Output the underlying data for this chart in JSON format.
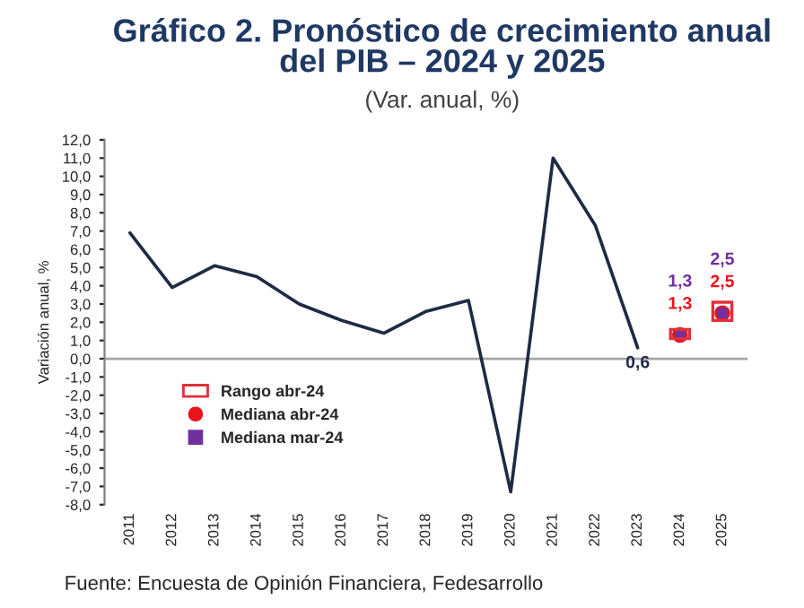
{
  "chart_data": {
    "type": "line",
    "title": "Gráfico 2. Pronóstico de crecimiento anual\ndel PIB – 2024 y 2025",
    "subtitle": "(Var. anual, %)",
    "ylabel": "Variación anual, %",
    "categories": [
      "2011",
      "2012",
      "2013",
      "2014",
      "2015",
      "2016",
      "2017",
      "2018",
      "2019",
      "2020",
      "2021",
      "2022",
      "2023",
      "2024",
      "2025"
    ],
    "series": [
      {
        "color": "#1f2a44",
        "values": [
          6.9,
          3.9,
          5.1,
          4.5,
          3.0,
          2.1,
          1.4,
          2.6,
          3.2,
          -7.3,
          11.0,
          7.3,
          0.6,
          null,
          null
        ],
        "value_labels": [
          null,
          null,
          null,
          null,
          null,
          null,
          null,
          null,
          null,
          null,
          null,
          null,
          "0,6",
          null,
          null
        ]
      },
      {
        "type": "bar",
        "name": "Rango abr-24",
        "color": "#e0303a",
        "base": [
          null,
          null,
          null,
          null,
          null,
          null,
          null,
          null,
          null,
          null,
          null,
          null,
          null,
          1.1,
          2.1
        ],
        "values": [
          null,
          null,
          null,
          null,
          null,
          null,
          null,
          null,
          null,
          null,
          null,
          null,
          null,
          0.5,
          1.0
        ]
      },
      {
        "type": "scatter",
        "name": "Mediana abr-24",
        "color": "#e8141c",
        "marker": "circle",
        "values": [
          null,
          null,
          null,
          null,
          null,
          null,
          null,
          null,
          null,
          null,
          null,
          null,
          null,
          1.3,
          2.5
        ],
        "value_labels": [
          null,
          null,
          null,
          null,
          null,
          null,
          null,
          null,
          null,
          null,
          null,
          null,
          null,
          "1,3",
          "2,5"
        ]
      },
      {
        "type": "scatter",
        "name": "Mediana mar-24",
        "color": "#7030a0",
        "marker": "square",
        "values": [
          null,
          null,
          null,
          null,
          null,
          null,
          null,
          null,
          null,
          null,
          null,
          null,
          null,
          1.3,
          2.5
        ],
        "value_labels": [
          null,
          null,
          null,
          null,
          null,
          null,
          null,
          null,
          null,
          null,
          null,
          null,
          null,
          "1,3",
          "2,5"
        ]
      }
    ],
    "ylim": [
      -8,
      12
    ],
    "yticks": [
      {
        "value": 12,
        "label": "12,0"
      },
      {
        "value": 11,
        "label": "11,0"
      },
      {
        "value": 10,
        "label": "10,0"
      },
      {
        "value": 9,
        "label": "9,0"
      },
      {
        "value": 8,
        "label": "8,0"
      },
      {
        "value": 7,
        "label": "7,0"
      },
      {
        "value": 6,
        "label": "6,0"
      },
      {
        "value": 5,
        "label": "5,0"
      },
      {
        "value": 4,
        "label": "4,0"
      },
      {
        "value": 3,
        "label": "3,0"
      },
      {
        "value": 2,
        "label": "2,0"
      },
      {
        "value": 1,
        "label": "1,0"
      },
      {
        "value": 0,
        "label": "0,0"
      },
      {
        "value": -1,
        "label": "-1,0"
      },
      {
        "value": -2,
        "label": "-2,0"
      },
      {
        "value": -3,
        "label": "-3,0"
      },
      {
        "value": -4,
        "label": "-4,0"
      },
      {
        "value": -5,
        "label": "-5,0"
      },
      {
        "value": -6,
        "label": "-6,0"
      },
      {
        "value": -7,
        "label": "-7,0"
      },
      {
        "value": -8,
        "label": "-8,0"
      }
    ],
    "ref_lines": [
      {
        "axis": "y",
        "value": 0,
        "color": "#a6a6a6"
      }
    ],
    "legend": "bottom left",
    "grid": false,
    "annotations": [
      "Fuente: Encuesta de Opinión Financiera, Fedesarrollo"
    ]
  }
}
